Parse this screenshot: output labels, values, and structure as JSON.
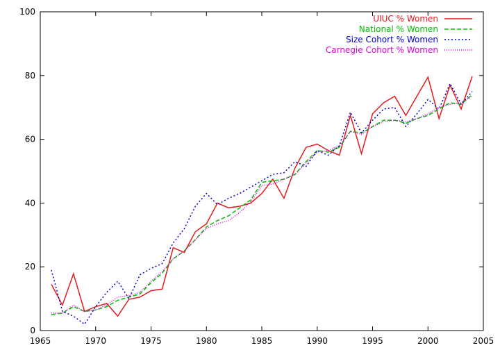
{
  "chart_data": {
    "type": "line",
    "title": "",
    "xlabel": "",
    "ylabel": "",
    "xlim": [
      1965,
      2005
    ],
    "ylim": [
      0,
      100
    ],
    "xticks": [
      1965,
      1970,
      1975,
      1980,
      1985,
      1990,
      1995,
      2000,
      2005
    ],
    "yticks": [
      0,
      20,
      40,
      60,
      80,
      100
    ],
    "grid": false,
    "legend_position": "top-right",
    "x": [
      1966,
      1967,
      1968,
      1969,
      1970,
      1971,
      1972,
      1973,
      1974,
      1975,
      1976,
      1977,
      1978,
      1979,
      1980,
      1981,
      1982,
      1983,
      1984,
      1985,
      1986,
      1987,
      1988,
      1989,
      1990,
      1991,
      1992,
      1993,
      1994,
      1995,
      1996,
      1997,
      1998,
      1999,
      2000,
      2001,
      2002,
      2003,
      2004
    ],
    "series": [
      {
        "name": "UIUC % Women",
        "color": "#e41a1c",
        "dash": "solid",
        "values": [
          14.5,
          8,
          17.8,
          6,
          7.5,
          8.5,
          4.5,
          9.8,
          10.5,
          12.5,
          13,
          26,
          24.5,
          31,
          33.5,
          40,
          38.5,
          39,
          40,
          43,
          47.5,
          41.5,
          51,
          57.5,
          58.5,
          56.5,
          55,
          67.5,
          55.5,
          68,
          71.5,
          73.5,
          67.5,
          73.5,
          79.5,
          66.5,
          77,
          69.5,
          79.8
        ]
      },
      {
        "name": "National % Women",
        "color": "#00c000",
        "dash": "dashed",
        "values": [
          5,
          5.5,
          7.5,
          6,
          6.5,
          7.5,
          9.5,
          10.5,
          11.5,
          15,
          18,
          22.5,
          25,
          28.5,
          32.5,
          34.5,
          36,
          38.5,
          41,
          46.5,
          47,
          47.5,
          49,
          53,
          56.5,
          56,
          57.5,
          62.5,
          62,
          64,
          66,
          66,
          65,
          66.5,
          67.5,
          69.5,
          71.5,
          71,
          74
        ]
      },
      {
        "name": "Size Cohort % Women",
        "color": "#0000cc",
        "dash": "dotted",
        "values": [
          19,
          6,
          4.5,
          2,
          7.5,
          12,
          15.5,
          10,
          17.5,
          19.5,
          21,
          27.5,
          32,
          39,
          43,
          39.5,
          41.5,
          43,
          45,
          47,
          49,
          49.5,
          53,
          51.5,
          56.5,
          55,
          58,
          68.5,
          62,
          66,
          69.5,
          70,
          64,
          68,
          72.5,
          69.5,
          77.5,
          71,
          75
        ]
      },
      {
        "name": "Carnegie Cohort % Women",
        "color": "#dd00dd",
        "dash": "dotted-fine",
        "values": [
          5.5,
          5.5,
          8,
          6,
          6.5,
          8,
          10.5,
          11,
          12,
          15.5,
          18.5,
          22.5,
          25,
          28.5,
          32,
          33.5,
          34.5,
          37,
          40.5,
          45.5,
          46,
          47.5,
          49,
          52.5,
          56,
          56.5,
          58,
          62.5,
          61.5,
          64,
          65.5,
          66,
          65.5,
          66.5,
          68,
          70,
          71,
          71.5,
          73.5
        ]
      }
    ]
  }
}
